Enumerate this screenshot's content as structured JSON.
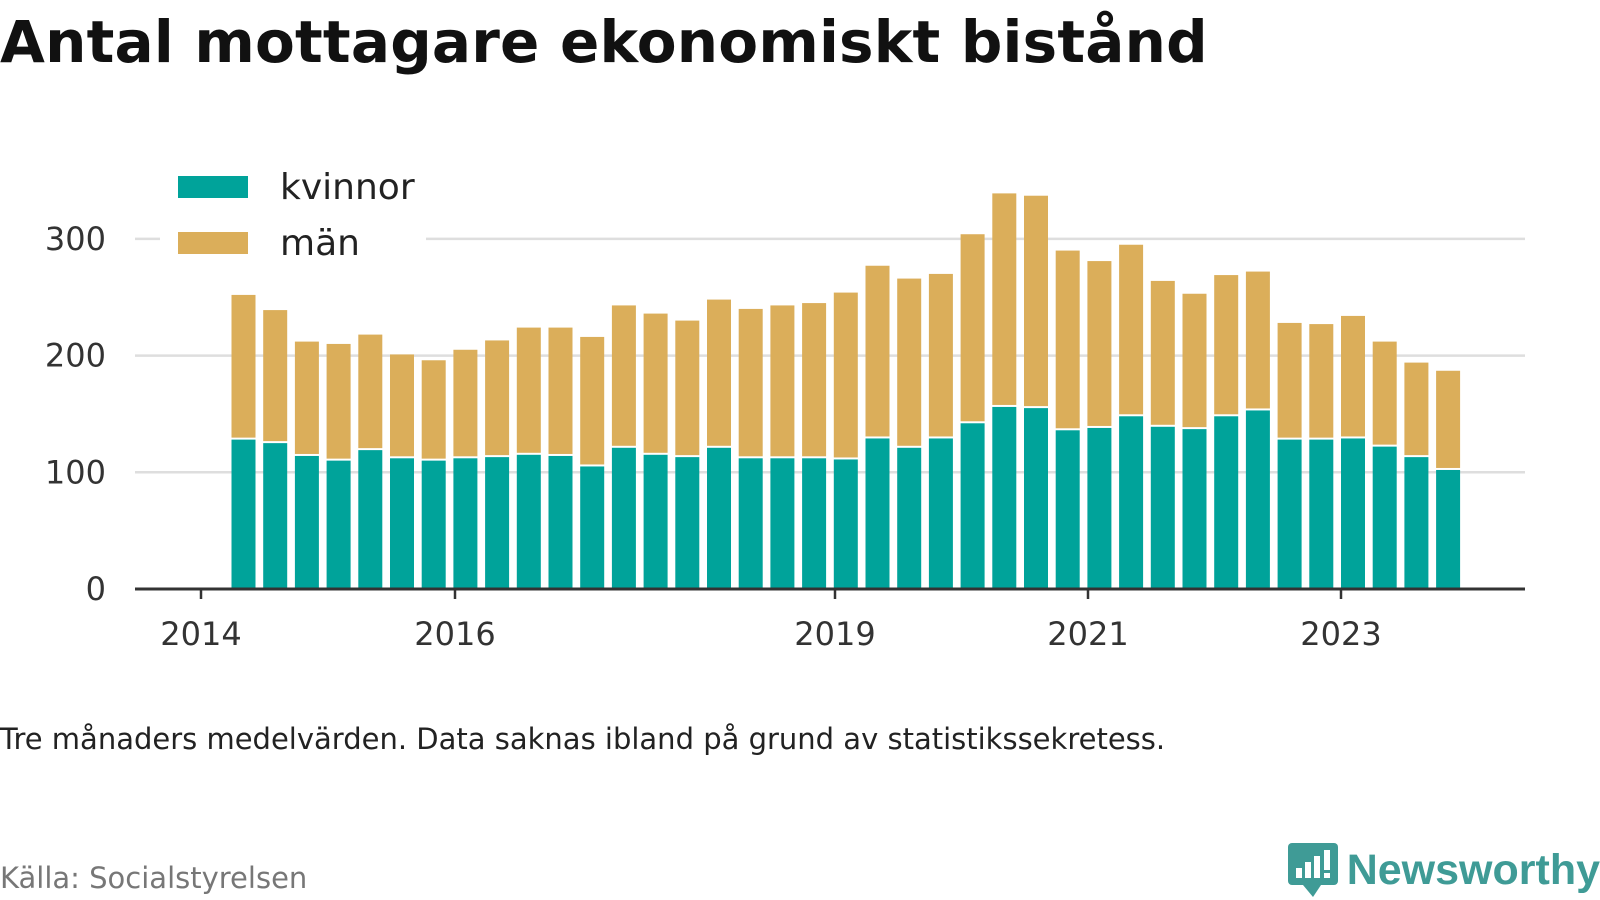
{
  "title": "Antal mottagare ekonomiskt bistånd",
  "note": "Tre månaders medelvärden. Data saknas ibland på grund av statistikssekretess.",
  "source": "Källa: Socialstyrelsen",
  "brand": {
    "name": "Newsworthy",
    "icon": "newsworthy-logo-icon",
    "color": "#3f9b96"
  },
  "chart_data": {
    "type": "bar",
    "stacked": true,
    "grid": true,
    "legend_position": "top-left",
    "ylim": [
      0,
      340
    ],
    "yticks": [
      0,
      100,
      200,
      300
    ],
    "ytick_labels": [
      "0",
      "100",
      "200",
      "300"
    ],
    "xtick_labels": [
      "2014",
      "2016",
      "2019",
      "2021",
      "2023"
    ],
    "x": [
      "2014-Q2",
      "2014-Q3",
      "2014-Q4",
      "2015-Q1",
      "2015-Q2",
      "2015-Q3",
      "2015-Q4",
      "2016-Q1",
      "2016-Q2",
      "2016-Q3",
      "2016-Q4",
      "2017-Q1",
      "2017-Q2",
      "2017-Q3",
      "2017-Q4",
      "2018-Q1",
      "2018-Q2",
      "2018-Q3",
      "2018-Q4",
      "2019-Q1",
      "2019-Q2",
      "2019-Q3",
      "2019-Q4",
      "2020-Q1",
      "2020-Q2",
      "2020-Q3",
      "2020-Q4",
      "2021-Q1",
      "2021-Q2",
      "2021-Q3",
      "2021-Q4",
      "2022-Q1",
      "2022-Q2",
      "2022-Q3",
      "2022-Q4",
      "2023-Q1",
      "2023-Q2",
      "2023-Q3",
      "2023-Q4"
    ],
    "series": [
      {
        "name": "kvinnor",
        "color": "#00a39a",
        "values": [
          128,
          125,
          114,
          110,
          119,
          112,
          110,
          112,
          113,
          115,
          114,
          105,
          121,
          115,
          113,
          121,
          112,
          112,
          112,
          111,
          129,
          121,
          129,
          142,
          156,
          155,
          136,
          138,
          148,
          139,
          137,
          148,
          153,
          128,
          128,
          129,
          122,
          113,
          102
        ]
      },
      {
        "name": "män",
        "color": "#dbae5a",
        "values": [
          124,
          114,
          98,
          100,
          99,
          89,
          86,
          93,
          100,
          109,
          110,
          111,
          122,
          121,
          117,
          127,
          128,
          131,
          133,
          143,
          148,
          145,
          141,
          162,
          183,
          182,
          154,
          143,
          147,
          125,
          116,
          121,
          119,
          100,
          99,
          105,
          90,
          81,
          85
        ]
      }
    ]
  }
}
